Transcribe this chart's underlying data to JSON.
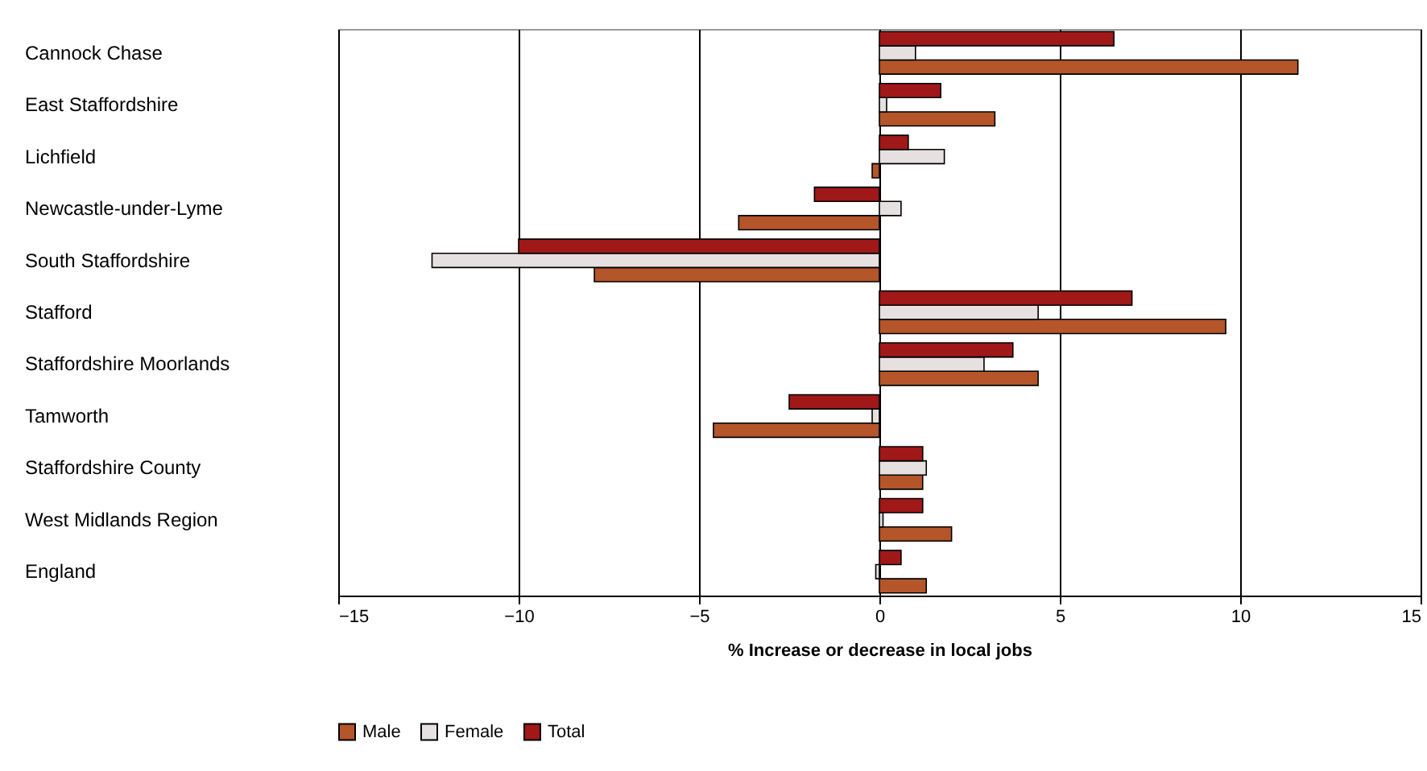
{
  "chart_data": {
    "type": "bar",
    "orientation": "horizontal",
    "xlabel": "% Increase or decrease in local jobs",
    "categories": [
      "Cannock Chase",
      "East Staffordshire",
      "Lichfield",
      "Newcastle-under-Lyme",
      "South Staffordshire",
      "Stafford",
      "Staffordshire Moorlands",
      "Tamworth",
      "Staffordshire County",
      "West Midlands Region",
      "England"
    ],
    "series": [
      {
        "name": "Male",
        "color": "#b4552a",
        "values": [
          11.6,
          3.2,
          -0.2,
          -3.9,
          -7.9,
          9.6,
          4.4,
          -4.6,
          1.2,
          2.0,
          1.3
        ]
      },
      {
        "name": "Female",
        "color": "#e6e0e0",
        "values": [
          1.0,
          0.2,
          1.8,
          0.6,
          -12.4,
          4.4,
          2.9,
          -0.2,
          1.3,
          0.1,
          -0.1
        ]
      },
      {
        "name": "Total",
        "color": "#a01818",
        "values": [
          6.5,
          1.7,
          0.8,
          -1.8,
          -10.0,
          7.0,
          3.7,
          -2.5,
          1.2,
          1.2,
          0.6
        ]
      }
    ],
    "xlim": [
      -15,
      15
    ],
    "xticks": [
      -15,
      -10,
      -5,
      0,
      5,
      10,
      15
    ],
    "grid": "x",
    "legend": "bottom"
  }
}
